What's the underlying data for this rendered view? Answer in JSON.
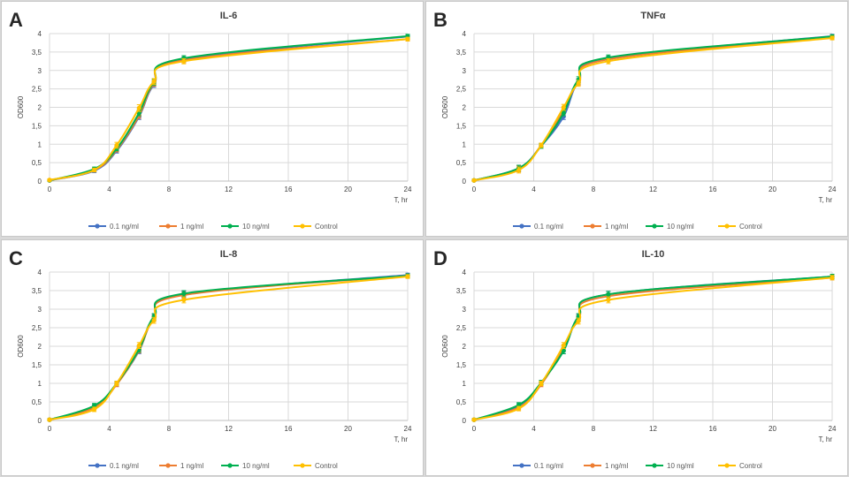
{
  "chart_data": [
    {
      "panel_letter": "A",
      "type": "line",
      "title": "IL-6",
      "xlabel": "T, hr",
      "ylabel": "OD600",
      "xlim": [
        0,
        24
      ],
      "ylim": [
        0,
        4
      ],
      "x_ticks": [
        0,
        4,
        8,
        12,
        16,
        20,
        24
      ],
      "y_ticks": [
        0,
        0.5,
        1,
        1.5,
        2,
        2.5,
        3,
        3.5,
        4
      ],
      "y_tick_labels": [
        "0",
        "0,5",
        "1",
        "1,5",
        "2",
        "2,5",
        "3",
        "3,5",
        "4"
      ],
      "grid": true,
      "legend_position": "bottom",
      "x": [
        0,
        3,
        4.5,
        6,
        7,
        9,
        24
      ],
      "series": [
        {
          "name": "0.1 ng/ml",
          "color": "#4472c4",
          "values": [
            0.02,
            0.28,
            0.82,
            1.75,
            2.62,
            3.3,
            3.92
          ],
          "errors": [
            0.03,
            0.05,
            0.06,
            0.08,
            0.08,
            0.07,
            0.05
          ]
        },
        {
          "name": "1 ng/ml",
          "color": "#ed7d31",
          "values": [
            0.02,
            0.3,
            0.85,
            1.78,
            2.65,
            3.28,
            3.85
          ],
          "errors": [
            0.03,
            0.05,
            0.06,
            0.08,
            0.08,
            0.07,
            0.05
          ]
        },
        {
          "name": "10 ng/ml",
          "color": "#00b050",
          "values": [
            0.02,
            0.33,
            0.88,
            1.85,
            2.68,
            3.33,
            3.93
          ],
          "errors": [
            0.03,
            0.05,
            0.06,
            0.08,
            0.08,
            0.07,
            0.05
          ]
        },
        {
          "name": "Control",
          "color": "#ffc000",
          "values": [
            0.03,
            0.3,
            0.97,
            1.98,
            2.7,
            3.25,
            3.85
          ],
          "errors": [
            0.03,
            0.05,
            0.08,
            0.09,
            0.08,
            0.07,
            0.05
          ]
        }
      ]
    },
    {
      "panel_letter": "B",
      "type": "line",
      "title": "TNFα",
      "xlabel": "T, hr",
      "ylabel": "OD600",
      "xlim": [
        0,
        24
      ],
      "ylim": [
        0,
        4
      ],
      "x_ticks": [
        0,
        4,
        8,
        12,
        16,
        20,
        24
      ],
      "y_ticks": [
        0,
        0.5,
        1,
        1.5,
        2,
        2.5,
        3,
        3.5,
        4
      ],
      "y_tick_labels": [
        "0",
        "0,5",
        "1",
        "1,5",
        "2",
        "2,5",
        "3",
        "3,5",
        "4"
      ],
      "grid": true,
      "legend_position": "bottom",
      "x": [
        0,
        3,
        4.5,
        6,
        7,
        9,
        24
      ],
      "series": [
        {
          "name": "0.1 ng/ml",
          "color": "#4472c4",
          "values": [
            0.02,
            0.35,
            0.95,
            1.75,
            2.7,
            3.32,
            3.93
          ],
          "errors": [
            0.03,
            0.08,
            0.06,
            0.08,
            0.08,
            0.07,
            0.05
          ]
        },
        {
          "name": "1 ng/ml",
          "color": "#ed7d31",
          "values": [
            0.02,
            0.33,
            0.97,
            1.9,
            2.68,
            3.3,
            3.9
          ],
          "errors": [
            0.03,
            0.08,
            0.06,
            0.08,
            0.08,
            0.07,
            0.05
          ]
        },
        {
          "name": "10 ng/ml",
          "color": "#00b050",
          "values": [
            0.02,
            0.35,
            0.95,
            1.85,
            2.75,
            3.35,
            3.92
          ],
          "errors": [
            0.03,
            0.08,
            0.06,
            0.08,
            0.08,
            0.07,
            0.05
          ]
        },
        {
          "name": "Control",
          "color": "#ffc000",
          "values": [
            0.02,
            0.3,
            0.97,
            2.0,
            2.65,
            3.25,
            3.88
          ],
          "errors": [
            0.03,
            0.08,
            0.06,
            0.08,
            0.08,
            0.07,
            0.05
          ]
        }
      ]
    },
    {
      "panel_letter": "C",
      "type": "line",
      "title": "IL-8",
      "xlabel": "T, hr",
      "ylabel": "OD600",
      "xlim": [
        0,
        24
      ],
      "ylim": [
        0,
        4
      ],
      "x_ticks": [
        0,
        4,
        8,
        12,
        16,
        20,
        24
      ],
      "y_ticks": [
        0,
        0.5,
        1,
        1.5,
        2,
        2.5,
        3,
        3.5,
        4
      ],
      "y_tick_labels": [
        "0",
        "0,5",
        "1",
        "1,5",
        "2",
        "2,5",
        "3",
        "3,5",
        "4"
      ],
      "grid": true,
      "legend_position": "bottom",
      "x": [
        0,
        3,
        4.5,
        6,
        7,
        9,
        24
      ],
      "series": [
        {
          "name": "0.1 ng/ml",
          "color": "#4472c4",
          "values": [
            0.02,
            0.38,
            0.98,
            1.88,
            2.78,
            3.4,
            3.92
          ],
          "errors": [
            0.03,
            0.06,
            0.06,
            0.08,
            0.08,
            0.08,
            0.05
          ]
        },
        {
          "name": "1 ng/ml",
          "color": "#ed7d31",
          "values": [
            0.02,
            0.35,
            0.97,
            1.9,
            2.75,
            3.38,
            3.9
          ],
          "errors": [
            0.03,
            0.06,
            0.06,
            0.08,
            0.08,
            0.08,
            0.05
          ]
        },
        {
          "name": "10 ng/ml",
          "color": "#00b050",
          "values": [
            0.02,
            0.4,
            1.0,
            1.92,
            2.8,
            3.42,
            3.9
          ],
          "errors": [
            0.03,
            0.06,
            0.06,
            0.08,
            0.08,
            0.08,
            0.05
          ]
        },
        {
          "name": "Control",
          "color": "#ffc000",
          "values": [
            0.02,
            0.3,
            1.0,
            2.02,
            2.7,
            3.25,
            3.88
          ],
          "errors": [
            0.03,
            0.06,
            0.06,
            0.08,
            0.08,
            0.08,
            0.05
          ]
        }
      ]
    },
    {
      "panel_letter": "D",
      "type": "line",
      "title": "IL-10",
      "xlabel": "T, hr",
      "ylabel": "OD600",
      "xlim": [
        0,
        24
      ],
      "ylim": [
        0,
        4
      ],
      "x_ticks": [
        0,
        4,
        8,
        12,
        16,
        20,
        24
      ],
      "y_ticks": [
        0,
        0.5,
        1,
        1.5,
        2,
        2.5,
        3,
        3.5,
        4
      ],
      "y_tick_labels": [
        "0",
        "0,5",
        "1",
        "1,5",
        "2",
        "2,5",
        "3",
        "3,5",
        "4"
      ],
      "grid": true,
      "legend_position": "bottom",
      "x": [
        0,
        3,
        4.5,
        6,
        7,
        9,
        24
      ],
      "series": [
        {
          "name": "0.1 ng/ml",
          "color": "#4472c4",
          "values": [
            0.02,
            0.4,
            1.02,
            1.88,
            2.78,
            3.4,
            3.88
          ],
          "errors": [
            0.03,
            0.06,
            0.06,
            0.08,
            0.08,
            0.08,
            0.06
          ]
        },
        {
          "name": "1 ng/ml",
          "color": "#ed7d31",
          "values": [
            0.02,
            0.35,
            0.97,
            1.95,
            2.75,
            3.35,
            3.85
          ],
          "errors": [
            0.03,
            0.06,
            0.06,
            0.08,
            0.08,
            0.08,
            0.06
          ]
        },
        {
          "name": "10 ng/ml",
          "color": "#00b050",
          "values": [
            0.02,
            0.42,
            1.02,
            1.88,
            2.8,
            3.4,
            3.88
          ],
          "errors": [
            0.03,
            0.06,
            0.06,
            0.08,
            0.08,
            0.08,
            0.06
          ]
        },
        {
          "name": "Control",
          "color": "#ffc000",
          "values": [
            0.02,
            0.32,
            1.0,
            2.02,
            2.68,
            3.25,
            3.85
          ],
          "errors": [
            0.03,
            0.06,
            0.06,
            0.08,
            0.08,
            0.08,
            0.06
          ]
        }
      ]
    }
  ]
}
